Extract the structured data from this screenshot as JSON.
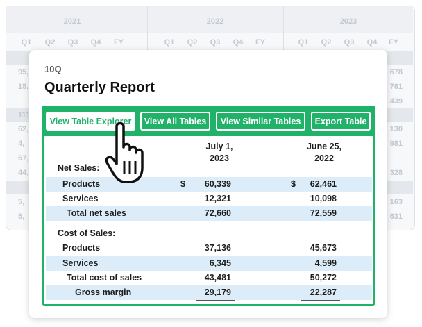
{
  "background": {
    "years": [
      "2021",
      "2022",
      "2023"
    ],
    "quarters": [
      "Q1",
      "Q2",
      "Q3",
      "Q4",
      "FY"
    ],
    "rows": [
      {
        "left": "95,",
        "right": "678"
      },
      {
        "left": "15,",
        "right": "761"
      },
      {
        "right": "439"
      },
      {
        "left": "111,"
      },
      {
        "left": "62,",
        "right": "130"
      },
      {
        "left": "4,",
        "right": "981"
      },
      {
        "left": "67,"
      },
      {
        "left": "44,",
        "right": "328"
      },
      {
        "left": "5,",
        "right": "163"
      },
      {
        "left": "5,",
        "right": "631"
      }
    ]
  },
  "report": {
    "form": "10Q",
    "title": "Quarterly Report",
    "buttons": [
      "View Table Explorer",
      "View All Tables",
      "View Similar Tables",
      "Export Table"
    ],
    "columns": [
      [
        "July 1,",
        "2023"
      ],
      [
        "June 25,",
        "2022"
      ]
    ],
    "rows": [
      {
        "label": "Net Sales:"
      },
      {
        "label": "Products",
        "cur1": "$",
        "c1": "60,339",
        "cur2": "$",
        "c2": "62,461"
      },
      {
        "label": "Services",
        "c1": "12,321",
        "c2": "10,098"
      },
      {
        "label": "Total net sales",
        "c1": "72,660",
        "c2": "72,559"
      },
      {
        "label": "Cost of Sales:"
      },
      {
        "label": "Products",
        "c1": "37,136",
        "c2": "45,673"
      },
      {
        "label": "Services",
        "c1": "6,345",
        "c2": "4,599"
      },
      {
        "label": "Total cost of sales",
        "c1": "43,481",
        "c2": "50,272"
      },
      {
        "label": "Gross margin",
        "c1": "29,179",
        "c2": "22,287"
      }
    ]
  }
}
